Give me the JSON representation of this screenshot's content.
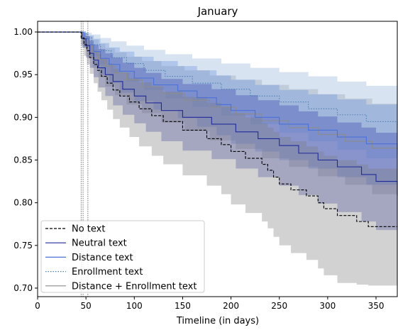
{
  "chart_data": {
    "type": "line",
    "subtype": "kaplan-meier survival curves with confidence bands",
    "title": "January",
    "xlabel": "Timeline (in days)",
    "ylabel": "",
    "xlim": [
      0,
      372
    ],
    "ylim": [
      0.69,
      1.0125
    ],
    "x_ticks": [
      0,
      50,
      100,
      150,
      200,
      250,
      300,
      350
    ],
    "y_ticks": [
      0.7,
      0.75,
      0.8,
      0.85,
      0.9,
      0.95,
      1.0
    ],
    "y_tick_labels": [
      "0.70",
      "0.75",
      "0.80",
      "0.85",
      "0.90",
      "0.95",
      "1.00"
    ],
    "grid": false,
    "legend": "lower-left",
    "reference_lines_x": [
      45,
      47,
      52
    ],
    "series": [
      {
        "name": "No text",
        "style": "dashed",
        "color": "#000000",
        "band_color": "#7f7f7f",
        "x": [
          0,
          42,
          45,
          48,
          51,
          54,
          58,
          62,
          66,
          72,
          78,
          85,
          95,
          105,
          118,
          130,
          150,
          175,
          190,
          200,
          215,
          232,
          238,
          244,
          250,
          262,
          278,
          290,
          296,
          310,
          330,
          342,
          372
        ],
        "y": [
          1.0,
          1.0,
          0.993,
          0.985,
          0.978,
          0.97,
          0.962,
          0.955,
          0.948,
          0.94,
          0.932,
          0.925,
          0.918,
          0.91,
          0.902,
          0.895,
          0.885,
          0.875,
          0.868,
          0.86,
          0.852,
          0.845,
          0.838,
          0.83,
          0.822,
          0.815,
          0.808,
          0.8,
          0.793,
          0.785,
          0.778,
          0.772,
          0.772
        ],
        "lower": [
          1.0,
          1.0,
          0.985,
          0.972,
          0.962,
          0.951,
          0.94,
          0.93,
          0.92,
          0.909,
          0.898,
          0.888,
          0.877,
          0.866,
          0.855,
          0.845,
          0.832,
          0.82,
          0.81,
          0.798,
          0.788,
          0.778,
          0.77,
          0.76,
          0.75,
          0.741,
          0.733,
          0.723,
          0.715,
          0.706,
          0.704,
          0.703,
          0.703
        ],
        "upper": [
          1.0,
          1.0,
          0.999,
          0.995,
          0.99,
          0.985,
          0.979,
          0.974,
          0.968,
          0.963,
          0.957,
          0.952,
          0.946,
          0.941,
          0.936,
          0.93,
          0.924,
          0.917,
          0.912,
          0.905,
          0.9,
          0.893,
          0.888,
          0.883,
          0.877,
          0.872,
          0.866,
          0.86,
          0.855,
          0.85,
          0.845,
          0.84,
          0.84
        ]
      },
      {
        "name": "Neutral text",
        "style": "solid",
        "color": "#1f2a9a",
        "band_color": "#3a42b0",
        "x": [
          0,
          42,
          46,
          50,
          54,
          58,
          63,
          70,
          78,
          88,
          100,
          112,
          128,
          150,
          180,
          205,
          228,
          250,
          270,
          290,
          310,
          335,
          350,
          372
        ],
        "y": [
          1.0,
          1.0,
          0.992,
          0.984,
          0.975,
          0.967,
          0.958,
          0.95,
          0.942,
          0.933,
          0.925,
          0.917,
          0.908,
          0.9,
          0.892,
          0.883,
          0.875,
          0.867,
          0.858,
          0.85,
          0.842,
          0.833,
          0.825,
          0.808
        ],
        "lower": [
          1.0,
          1.0,
          0.982,
          0.97,
          0.958,
          0.947,
          0.935,
          0.925,
          0.914,
          0.903,
          0.893,
          0.883,
          0.872,
          0.861,
          0.851,
          0.84,
          0.83,
          0.82,
          0.809,
          0.799,
          0.789,
          0.778,
          0.768,
          0.748
        ],
        "upper": [
          1.0,
          1.0,
          0.999,
          0.995,
          0.99,
          0.985,
          0.98,
          0.975,
          0.97,
          0.964,
          0.958,
          0.952,
          0.945,
          0.939,
          0.933,
          0.926,
          0.92,
          0.914,
          0.907,
          0.901,
          0.894,
          0.888,
          0.882,
          0.868
        ]
      },
      {
        "name": "Distance text",
        "style": "solid",
        "color": "#4a72d8",
        "band_color": "#6a8ee0",
        "x": [
          0,
          44,
          48,
          53,
          58,
          65,
          74,
          85,
          100,
          120,
          145,
          165,
          185,
          200,
          225,
          250,
          280,
          310,
          340,
          372
        ],
        "y": [
          1.0,
          1.0,
          0.992,
          0.985,
          0.977,
          0.969,
          0.962,
          0.954,
          0.946,
          0.938,
          0.931,
          0.923,
          0.915,
          0.908,
          0.9,
          0.892,
          0.885,
          0.877,
          0.869,
          0.862
        ],
        "lower": [
          1.0,
          1.0,
          0.982,
          0.971,
          0.96,
          0.95,
          0.94,
          0.929,
          0.919,
          0.909,
          0.899,
          0.889,
          0.879,
          0.869,
          0.86,
          0.85,
          0.84,
          0.83,
          0.821,
          0.811
        ],
        "upper": [
          1.0,
          1.0,
          0.999,
          0.996,
          0.992,
          0.987,
          0.982,
          0.977,
          0.971,
          0.966,
          0.96,
          0.955,
          0.949,
          0.944,
          0.938,
          0.932,
          0.927,
          0.921,
          0.915,
          0.91
        ]
      },
      {
        "name": "Enrollment text",
        "style": "dotted",
        "color": "#4a7fb4",
        "band_color": "#8fb0d6",
        "x": [
          0,
          45,
          50,
          56,
          65,
          76,
          92,
          110,
          132,
          160,
          190,
          220,
          250,
          280,
          310,
          340,
          372
        ],
        "y": [
          1.0,
          1.0,
          0.993,
          0.985,
          0.978,
          0.97,
          0.963,
          0.955,
          0.948,
          0.94,
          0.933,
          0.925,
          0.918,
          0.91,
          0.903,
          0.895,
          0.888
        ],
        "lower": [
          1.0,
          1.0,
          0.983,
          0.972,
          0.962,
          0.952,
          0.942,
          0.932,
          0.922,
          0.912,
          0.902,
          0.892,
          0.882,
          0.872,
          0.862,
          0.852,
          0.842
        ],
        "upper": [
          1.0,
          1.0,
          0.999,
          0.997,
          0.993,
          0.989,
          0.984,
          0.979,
          0.974,
          0.969,
          0.963,
          0.958,
          0.953,
          0.948,
          0.942,
          0.937,
          0.932
        ]
      },
      {
        "name": "Distance + Enrollment text",
        "style": "solid",
        "color": "#8c8c8c",
        "band_color": "#9a9a9a",
        "x": [
          0,
          43,
          47,
          52,
          57,
          63,
          70,
          80,
          92,
          108,
          128,
          152,
          178,
          205,
          232,
          260,
          290,
          318,
          346,
          372
        ],
        "y": [
          1.0,
          1.0,
          0.992,
          0.984,
          0.976,
          0.968,
          0.96,
          0.952,
          0.944,
          0.936,
          0.928,
          0.92,
          0.912,
          0.904,
          0.896,
          0.888,
          0.88,
          0.872,
          0.864,
          0.856
        ],
        "lower": [
          1.0,
          1.0,
          0.981,
          0.969,
          0.958,
          0.947,
          0.936,
          0.926,
          0.915,
          0.905,
          0.894,
          0.884,
          0.873,
          0.863,
          0.852,
          0.842,
          0.831,
          0.821,
          0.81,
          0.8
        ],
        "upper": [
          1.0,
          1.0,
          0.999,
          0.995,
          0.991,
          0.986,
          0.981,
          0.976,
          0.971,
          0.966,
          0.96,
          0.955,
          0.949,
          0.944,
          0.938,
          0.933,
          0.927,
          0.922,
          0.916,
          0.911
        ]
      }
    ]
  }
}
